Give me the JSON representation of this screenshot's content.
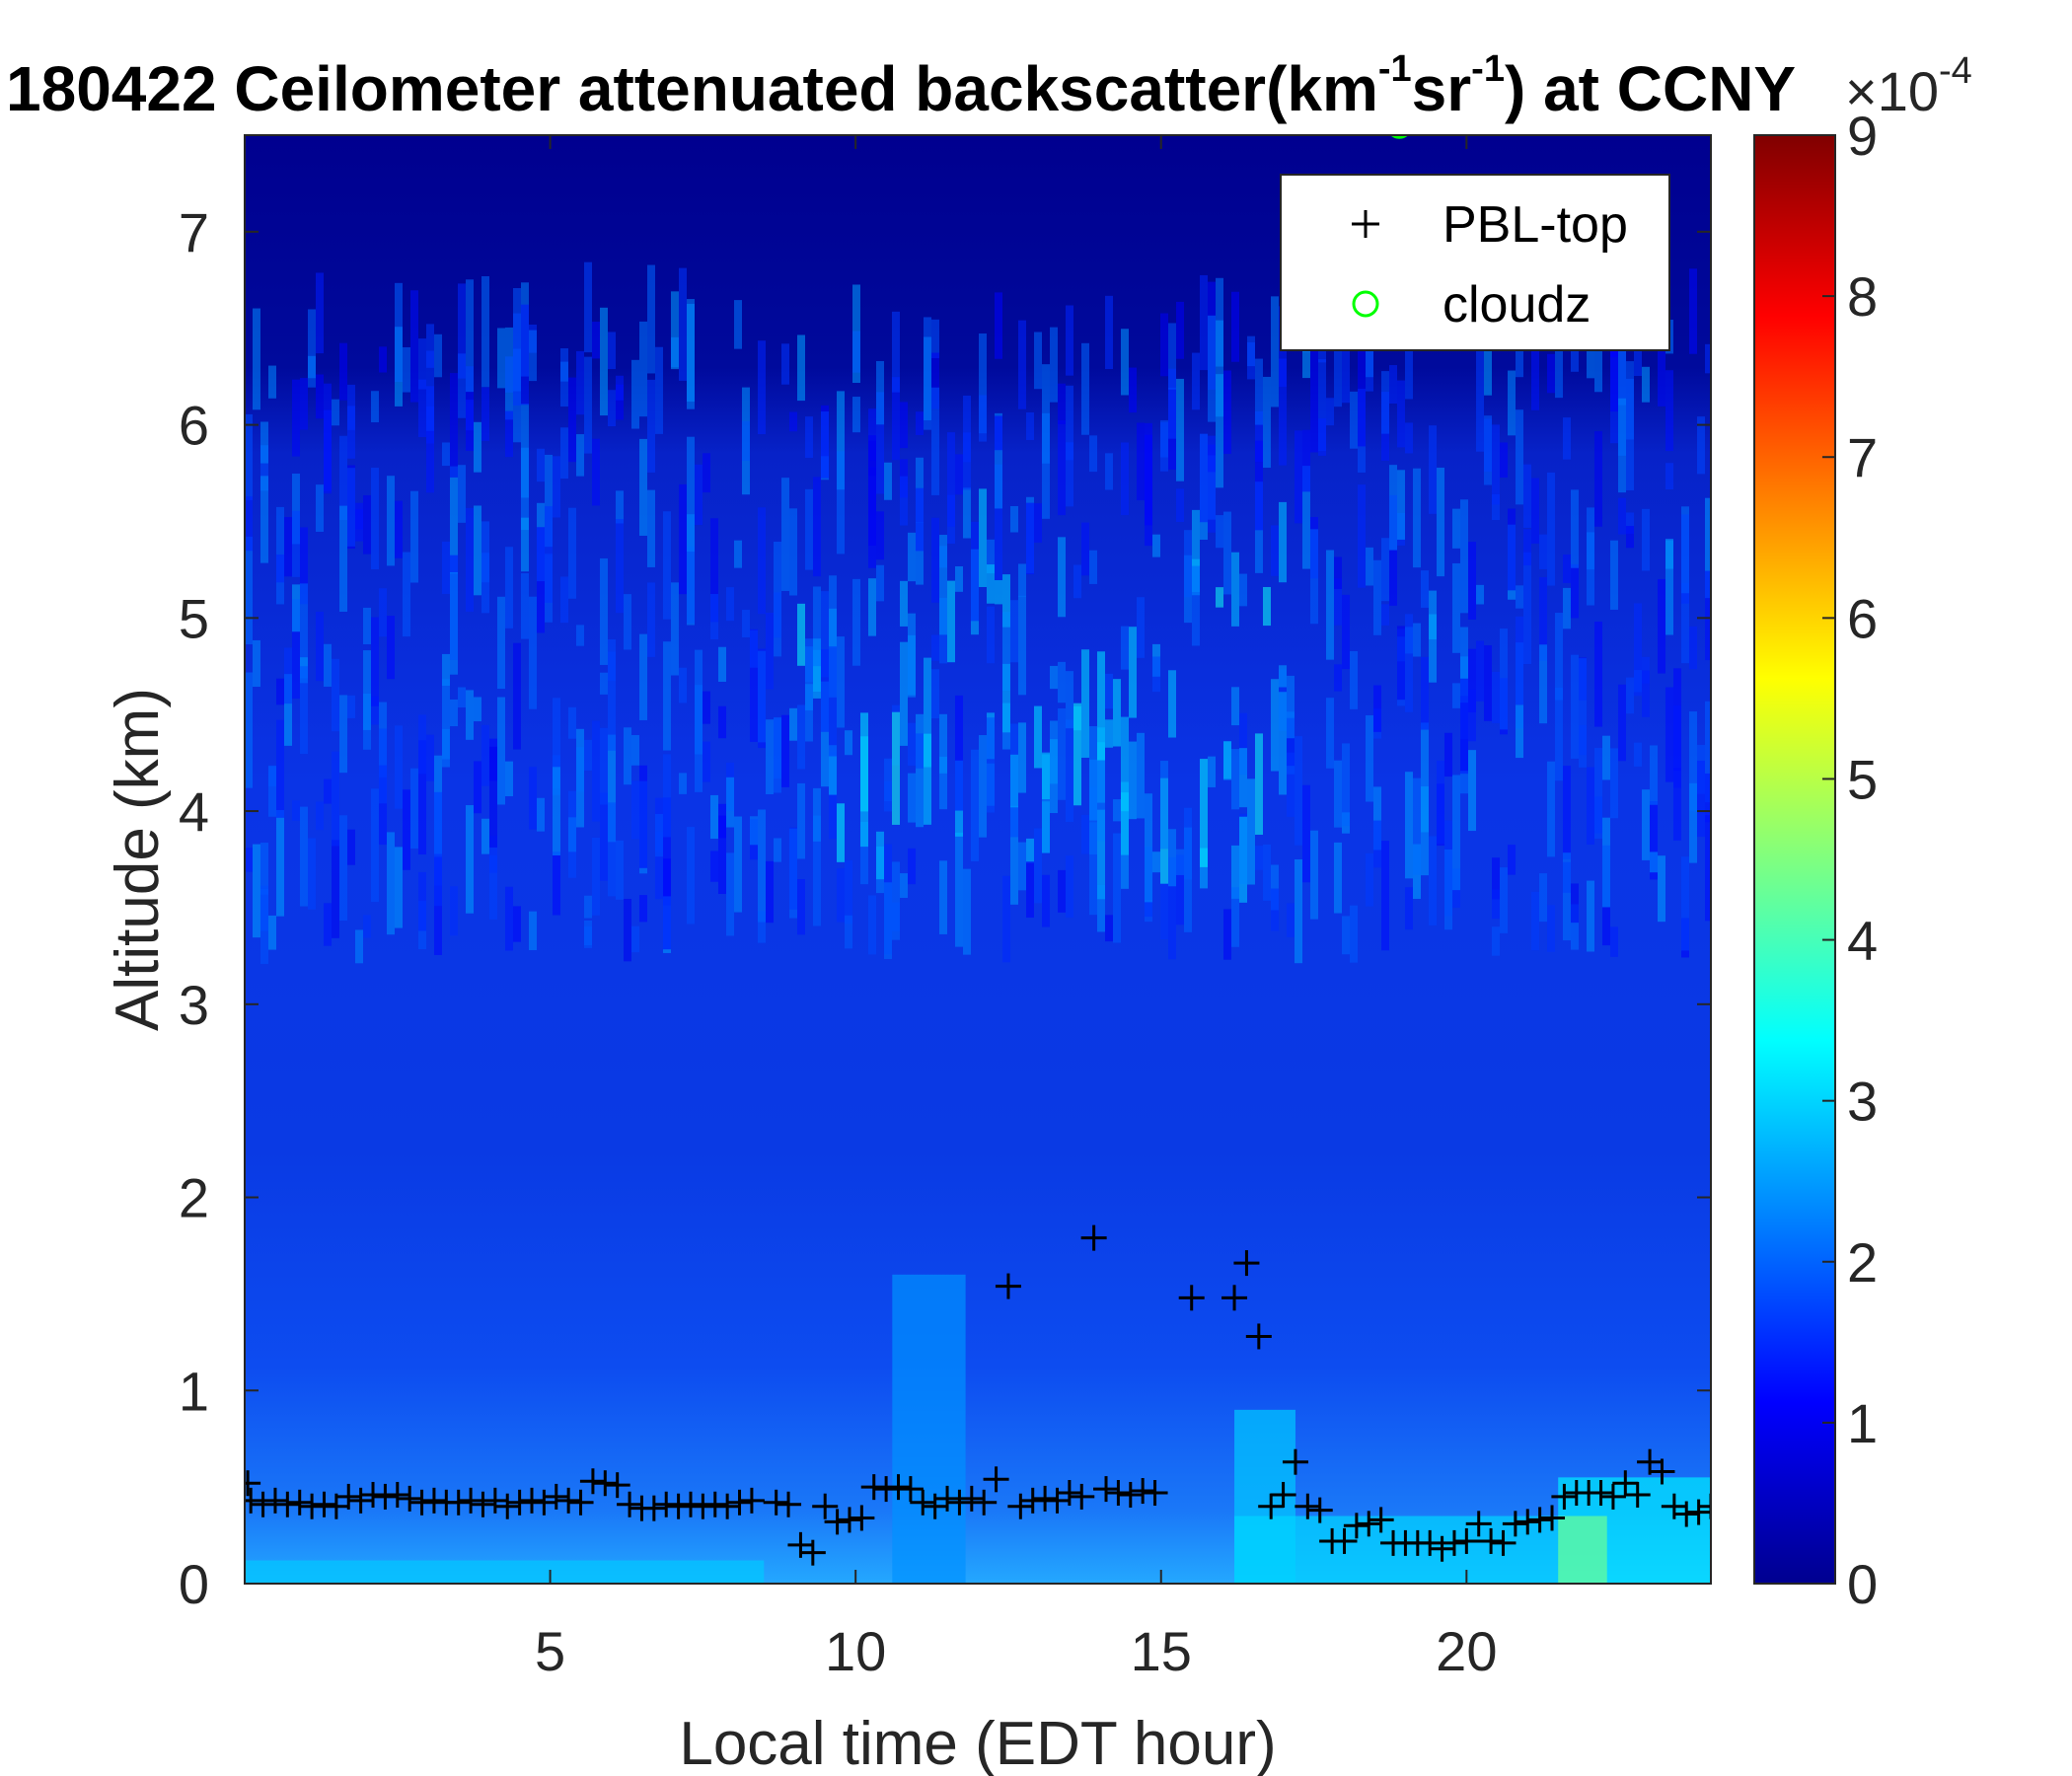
{
  "chart_data": {
    "type": "heatmap",
    "title_main": "180422 Ceilometer attenuated backscatter(km",
    "title_sup1": "-1",
    "title_mid": "sr",
    "title_sup2": "-1",
    "title_end": ") at CCNY",
    "xlabel": "Local time (EDT hour)",
    "ylabel": "Altitude (km)",
    "xlim": [
      0,
      24
    ],
    "ylim": [
      0,
      7.5
    ],
    "xticks": [
      5,
      10,
      15,
      20
    ],
    "yticks": [
      0,
      1,
      2,
      3,
      4,
      5,
      6,
      7
    ],
    "colorbar": {
      "colormap": "jet",
      "range": [
        0,
        9
      ],
      "ticks": [
        0,
        1,
        2,
        3,
        4,
        5,
        6,
        7,
        8,
        9
      ],
      "exponent_base": "×10",
      "exponent_power": "-4"
    },
    "legend": {
      "location": "top-right",
      "entries": [
        {
          "name": "PBL-top",
          "marker": "+",
          "color": "#000000"
        },
        {
          "name": "cloudz",
          "marker": "o",
          "color": "#00ff00"
        }
      ]
    },
    "series": [
      {
        "name": "PBL-top",
        "marker": "+",
        "x": [
          0.05,
          0.1,
          0.3,
          0.5,
          0.7,
          0.9,
          1.1,
          1.3,
          1.5,
          1.7,
          1.9,
          2.1,
          2.3,
          2.5,
          2.7,
          2.9,
          3.1,
          3.3,
          3.5,
          3.7,
          3.9,
          4.1,
          4.3,
          4.5,
          4.7,
          4.9,
          5.1,
          5.3,
          5.5,
          5.7,
          5.9,
          6.1,
          6.3,
          6.5,
          6.7,
          6.9,
          7.1,
          7.3,
          7.5,
          7.7,
          7.9,
          8.1,
          8.3,
          8.7,
          8.9,
          9.1,
          9.3,
          9.5,
          9.7,
          9.9,
          10.1,
          10.3,
          10.5,
          10.7,
          10.9,
          11.1,
          11.3,
          11.5,
          11.7,
          11.9,
          12.1,
          12.3,
          12.5,
          12.7,
          12.9,
          13.1,
          13.3,
          13.5,
          13.7,
          13.9,
          14.1,
          14.3,
          14.5,
          14.7,
          14.9,
          15.5,
          16.2,
          16.4,
          16.6,
          16.8,
          17.0,
          17.2,
          17.4,
          17.6,
          17.8,
          18.0,
          18.2,
          18.4,
          18.6,
          18.8,
          19.0,
          19.2,
          19.4,
          19.6,
          19.8,
          20.0,
          20.2,
          20.4,
          20.6,
          20.8,
          21.0,
          21.2,
          21.4,
          21.6,
          21.8,
          22.0,
          22.2,
          22.4,
          22.6,
          22.8,
          23.0,
          23.2,
          23.4,
          23.6,
          23.8,
          24.0
        ],
        "y": [
          0.52,
          0.43,
          0.41,
          0.43,
          0.41,
          0.42,
          0.4,
          0.41,
          0.4,
          0.45,
          0.43,
          0.46,
          0.45,
          0.46,
          0.44,
          0.42,
          0.43,
          0.42,
          0.42,
          0.43,
          0.41,
          0.43,
          0.4,
          0.42,
          0.43,
          0.42,
          0.45,
          0.43,
          0.42,
          0.53,
          0.52,
          0.51,
          0.41,
          0.39,
          0.39,
          0.41,
          0.4,
          0.41,
          0.4,
          0.41,
          0.4,
          0.42,
          0.43,
          0.42,
          0.41,
          0.2,
          0.16,
          0.4,
          0.32,
          0.33,
          0.34,
          0.5,
          0.49,
          0.5,
          0.49,
          0.42,
          0.4,
          0.44,
          0.42,
          0.44,
          0.42,
          0.54,
          1.54,
          0.4,
          0.43,
          0.44,
          0.43,
          0.47,
          0.45,
          1.79,
          0.49,
          0.47,
          0.46,
          0.48,
          0.47,
          1.48,
          1.48,
          1.66,
          1.28,
          0.4,
          0.46,
          0.63,
          0.4,
          0.38,
          0.22,
          0.22,
          0.3,
          0.31,
          0.33,
          0.21,
          0.21,
          0.21,
          0.21,
          0.18,
          0.21,
          0.22,
          0.31,
          0.22,
          0.21,
          0.31,
          0.32,
          0.33,
          0.34,
          0.45,
          0.47,
          0.47,
          0.47,
          0.45,
          0.52,
          0.46,
          0.63,
          0.58,
          0.4,
          0.36,
          0.37,
          0.4
        ],
        "y_note": "x values 8.7+ are shifted; see plotted markers"
      },
      {
        "name": "cloudz",
        "marker": "o",
        "x": [
          18.9
        ],
        "y": [
          7.55
        ]
      }
    ]
  }
}
